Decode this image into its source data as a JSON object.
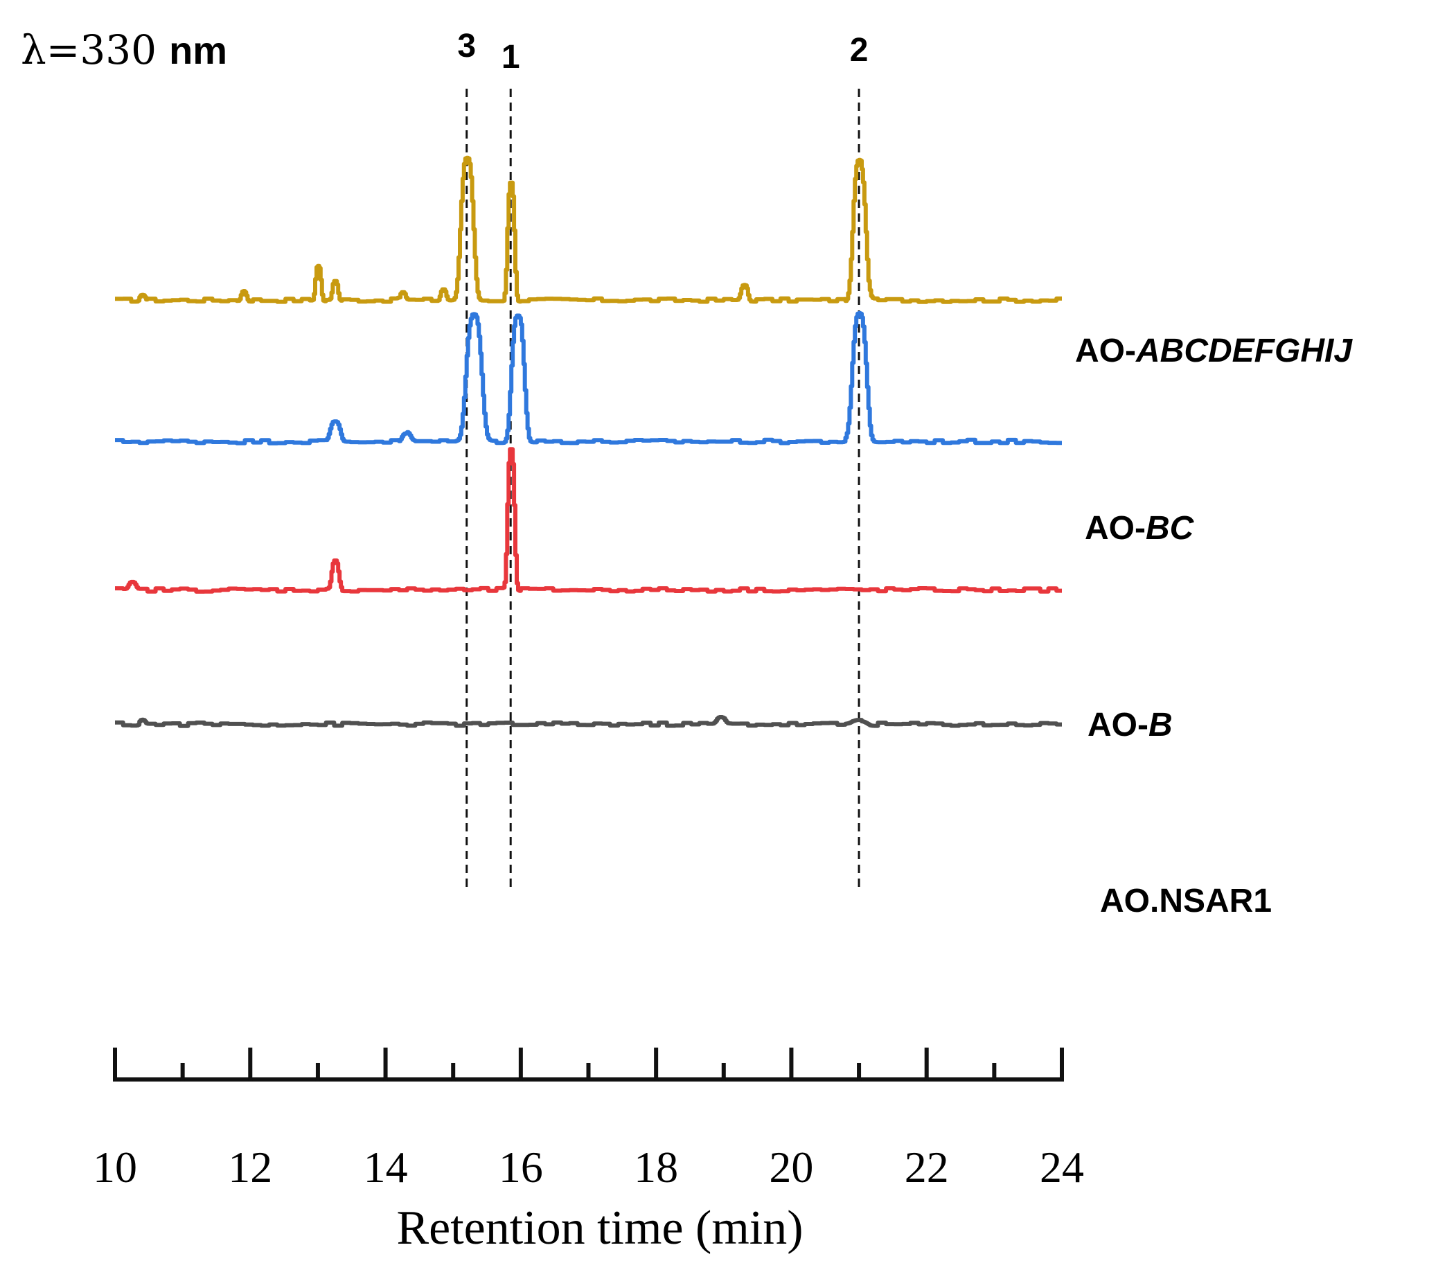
{
  "chart_data": {
    "type": "line",
    "title": "",
    "wavelength_symbol": "λ=330",
    "wavelength_unit": "nm",
    "xlabel": "Retention time (min)",
    "ylabel": "",
    "xlim": [
      10,
      24
    ],
    "x_ticks": [
      "10",
      "12",
      "14",
      "16",
      "18",
      "20",
      "22",
      "24"
    ],
    "x_tick_values": [
      10,
      12,
      14,
      16,
      18,
      20,
      22,
      24
    ],
    "minor_tick_step": 1,
    "peak_markers": [
      {
        "label": "3",
        "x": 15.2
      },
      {
        "label": "1",
        "x": 15.85
      },
      {
        "label": "2",
        "x": 21.0
      }
    ],
    "series": [
      {
        "name": "AO-ABCDEFGHIJ",
        "name_prefix": "AO-",
        "name_italic": "ABCDEFGHIJ",
        "color": "#C89A10",
        "baseline_level": 4.2,
        "peaks": [
          {
            "x": 10.4,
            "h": 0.04,
            "w": 0.04
          },
          {
            "x": 11.9,
            "h": 0.07,
            "w": 0.04
          },
          {
            "x": 13.0,
            "h": 0.25,
            "w": 0.04
          },
          {
            "x": 13.25,
            "h": 0.14,
            "w": 0.04
          },
          {
            "x": 14.25,
            "h": 0.06,
            "w": 0.04
          },
          {
            "x": 14.85,
            "h": 0.08,
            "w": 0.04
          },
          {
            "x": 15.2,
            "h": 1.0,
            "w": 0.09
          },
          {
            "x": 15.85,
            "h": 0.83,
            "w": 0.05
          },
          {
            "x": 19.3,
            "h": 0.11,
            "w": 0.05
          },
          {
            "x": 21.0,
            "h": 0.98,
            "w": 0.09
          }
        ]
      },
      {
        "name": "AO-BC",
        "name_prefix": "AO-",
        "name_italic": "BC",
        "color": "#2F78DD",
        "baseline_level": 3.2,
        "peaks": [
          {
            "x": 13.25,
            "h": 0.14,
            "w": 0.07
          },
          {
            "x": 14.3,
            "h": 0.06,
            "w": 0.06
          },
          {
            "x": 15.3,
            "h": 0.9,
            "w": 0.11
          },
          {
            "x": 15.95,
            "h": 0.9,
            "w": 0.09
          },
          {
            "x": 21.0,
            "h": 0.9,
            "w": 0.1
          }
        ]
      },
      {
        "name": "AO-B",
        "name_prefix": "AO-",
        "name_italic": "B",
        "color": "#E8373C",
        "baseline_level": 2.15,
        "peaks": [
          {
            "x": 10.25,
            "h": 0.05,
            "w": 0.05
          },
          {
            "x": 13.25,
            "h": 0.2,
            "w": 0.05
          },
          {
            "x": 15.85,
            "h": 1.0,
            "w": 0.05
          }
        ]
      },
      {
        "name": "AO.NSAR1",
        "name_prefix": "AO.NSAR1",
        "name_italic": "",
        "color": "#505050",
        "baseline_level": 1.2,
        "peaks": [
          {
            "x": 10.4,
            "h": 0.03,
            "w": 0.04
          },
          {
            "x": 18.95,
            "h": 0.05,
            "w": 0.06
          },
          {
            "x": 21.0,
            "h": 0.03,
            "w": 0.1
          }
        ]
      }
    ]
  }
}
